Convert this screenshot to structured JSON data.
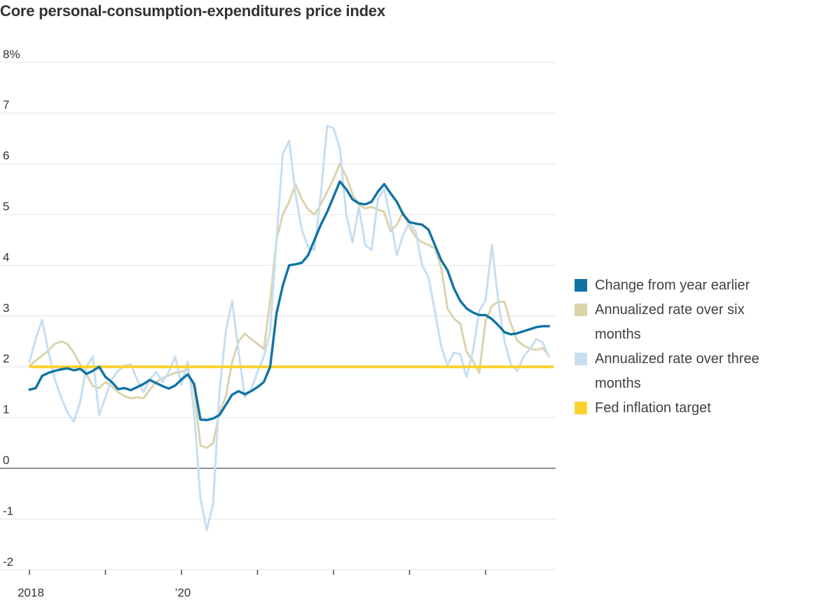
{
  "title": "Core personal-consumption-expenditures price index",
  "chart_data": {
    "type": "line",
    "title": "Core personal-consumption-expenditures price index",
    "x_start": "Jan 2018",
    "x_frequency": "monthly",
    "x_tick_labels": [
      {
        "year_index": 0,
        "label": "2018"
      },
      {
        "year_index": 2,
        "label": "’20"
      }
    ],
    "x_unlabeled_tick_year_indexes": [
      1,
      3,
      4,
      5,
      6
    ],
    "ylim": [
      -2,
      8
    ],
    "y_ticks": [
      {
        "label": "8%",
        "value": 8
      },
      {
        "label": "7",
        "value": 7
      },
      {
        "label": "6",
        "value": 6
      },
      {
        "label": "5",
        "value": 5
      },
      {
        "label": "4",
        "value": 4
      },
      {
        "label": "3",
        "value": 3
      },
      {
        "label": "2",
        "value": 2
      },
      {
        "label": "1",
        "value": 1
      },
      {
        "label": "0",
        "value": 0
      },
      {
        "label": "-1",
        "value": -1
      },
      {
        "label": "-2",
        "value": -2
      }
    ],
    "grid": "horizontal",
    "legend_position": "right",
    "style": {
      "grid_color": "#e4e4e4",
      "zero_line_color": "#8f8f8f",
      "axis_tick_color": "#555555",
      "axis_label_color": "#333333",
      "axis_line_color": "#dddddd"
    },
    "series": [
      {
        "id": "yoy",
        "label": "Change from year earlier",
        "color": "#0f73a6",
        "stroke_width": 3.4,
        "values": [
          1.55,
          1.58,
          1.82,
          1.88,
          1.92,
          1.95,
          1.97,
          1.93,
          1.96,
          1.86,
          1.92,
          2.0,
          1.8,
          1.7,
          1.56,
          1.58,
          1.54,
          1.6,
          1.66,
          1.74,
          1.68,
          1.62,
          1.57,
          1.63,
          1.75,
          1.85,
          1.66,
          0.96,
          0.95,
          0.98,
          1.05,
          1.25,
          1.45,
          1.52,
          1.46,
          1.52,
          1.6,
          1.7,
          2.0,
          3.05,
          3.6,
          4.0,
          4.02,
          4.05,
          4.2,
          4.5,
          4.8,
          5.05,
          5.35,
          5.65,
          5.5,
          5.3,
          5.22,
          5.2,
          5.25,
          5.45,
          5.6,
          5.42,
          5.25,
          5.0,
          4.85,
          4.82,
          4.8,
          4.7,
          4.4,
          4.1,
          3.9,
          3.55,
          3.3,
          3.15,
          3.07,
          3.02,
          3.02,
          2.94,
          2.82,
          2.68,
          2.64,
          2.66,
          2.7,
          2.74,
          2.78,
          2.8,
          2.8
        ]
      },
      {
        "id": "six_month",
        "label": "Annualized rate over six months",
        "color": "#dbd4ab",
        "stroke_width": 3,
        "values": [
          2.02,
          2.12,
          2.22,
          2.32,
          2.45,
          2.5,
          2.45,
          2.28,
          2.05,
          1.85,
          1.62,
          1.58,
          1.7,
          1.62,
          1.5,
          1.42,
          1.38,
          1.4,
          1.38,
          1.55,
          1.7,
          1.78,
          1.83,
          1.88,
          1.9,
          1.95,
          1.55,
          0.45,
          0.4,
          0.5,
          1.1,
          1.42,
          2.1,
          2.5,
          2.65,
          2.55,
          2.45,
          2.35,
          3.3,
          4.5,
          5.0,
          5.25,
          5.6,
          5.3,
          5.1,
          5.0,
          5.2,
          5.45,
          5.7,
          6.0,
          5.75,
          5.4,
          5.2,
          5.12,
          5.15,
          5.1,
          5.05,
          4.67,
          4.8,
          5.05,
          4.75,
          4.55,
          4.45,
          4.4,
          4.33,
          3.95,
          3.15,
          2.95,
          2.85,
          2.3,
          2.12,
          1.88,
          2.9,
          3.2,
          3.28,
          3.28,
          2.85,
          2.52,
          2.42,
          2.36,
          2.33,
          2.37,
          2.22
        ]
      },
      {
        "id": "three_month",
        "label": "Annualized rate over three months",
        "color": "#c6def2",
        "stroke_width": 3,
        "values": [
          2.1,
          2.55,
          2.92,
          2.3,
          1.75,
          1.4,
          1.1,
          0.92,
          1.3,
          2.0,
          2.2,
          1.05,
          1.4,
          1.75,
          1.92,
          2.02,
          2.05,
          1.75,
          1.5,
          1.75,
          1.9,
          1.7,
          1.9,
          2.2,
          1.65,
          2.1,
          1.1,
          -0.6,
          -1.22,
          -0.7,
          1.5,
          2.7,
          3.3,
          2.3,
          1.4,
          1.55,
          1.9,
          2.2,
          2.7,
          4.5,
          6.2,
          6.45,
          5.4,
          4.7,
          4.35,
          4.3,
          5.4,
          6.75,
          6.7,
          6.3,
          5.0,
          4.45,
          5.15,
          4.4,
          4.3,
          5.3,
          5.5,
          4.9,
          4.2,
          4.6,
          4.85,
          4.65,
          4.0,
          3.76,
          3.1,
          2.4,
          2.03,
          2.28,
          2.25,
          1.8,
          2.3,
          3.1,
          3.3,
          4.4,
          3.3,
          2.5,
          2.05,
          1.92,
          2.2,
          2.35,
          2.55,
          2.48,
          2.2
        ]
      },
      {
        "id": "fed_target",
        "label": "Fed inflation target",
        "color": "#fdd12e",
        "stroke_width": 4,
        "type": "hline",
        "value": 2
      }
    ]
  }
}
